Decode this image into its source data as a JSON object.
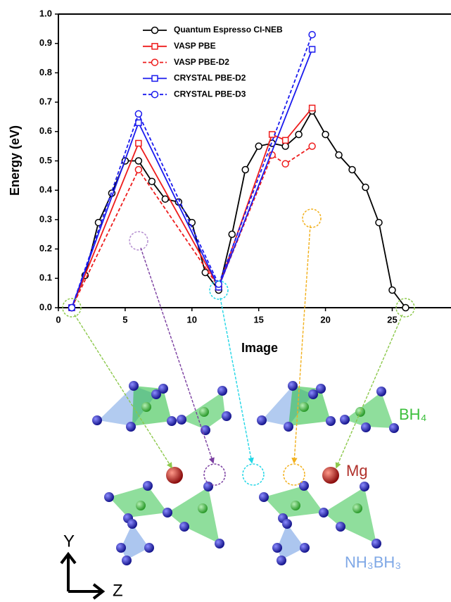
{
  "chart_data": {
    "type": "line",
    "xlabel": "Image",
    "ylabel": "Energy (eV)",
    "xlim": [
      0,
      29.4
    ],
    "ylim": [
      0,
      1.0
    ],
    "xticks": [
      0,
      5,
      10,
      15,
      20,
      25
    ],
    "yticks": [
      {
        "value": 0,
        "label": "0.0"
      },
      {
        "value": 0.1,
        "label": "0.1"
      },
      {
        "value": 0.2,
        "label": "0.2"
      },
      {
        "value": 0.3,
        "label": "0.3"
      },
      {
        "value": 0.4,
        "label": "0.4"
      },
      {
        "value": 0.5,
        "label": "0.5"
      },
      {
        "value": 0.6,
        "label": "0.6"
      },
      {
        "value": 0.7,
        "label": "0.7"
      },
      {
        "value": 0.8,
        "label": "0.8"
      },
      {
        "value": 0.9,
        "label": "0.9"
      },
      {
        "value": 1.0,
        "label": "1.0"
      }
    ],
    "series": [
      {
        "name": "Quantum Espresso CI-NEB",
        "color": "#000000",
        "marker": "circle",
        "dashed": false,
        "x": [
          1,
          2,
          3,
          4,
          5,
          6,
          7,
          8,
          9,
          10,
          11,
          12,
          13,
          14,
          15,
          16,
          17,
          18,
          19,
          20,
          21,
          22,
          23,
          24,
          25,
          26
        ],
        "values": [
          0.0,
          0.11,
          0.29,
          0.39,
          0.5,
          0.5,
          0.43,
          0.37,
          0.36,
          0.29,
          0.12,
          0.06,
          0.25,
          0.47,
          0.55,
          0.56,
          0.55,
          0.59,
          0.67,
          0.59,
          0.52,
          0.47,
          0.41,
          0.29,
          0.06,
          0.0
        ]
      },
      {
        "name": "VASP PBE",
        "color": "#ee1c1c",
        "marker": "square",
        "dashed": false,
        "x": [
          1,
          6,
          12,
          16,
          17,
          19
        ],
        "values": [
          0.0,
          0.56,
          0.07,
          0.59,
          0.57,
          0.68
        ]
      },
      {
        "name": "VASP PBE-D2",
        "color": "#ee1c1c",
        "marker": "circle",
        "dashed": true,
        "x": [
          1,
          6,
          12,
          16,
          17,
          19
        ],
        "values": [
          0.0,
          0.47,
          0.07,
          0.52,
          0.49,
          0.55
        ]
      },
      {
        "name": "CRYSTAL PBE-D2",
        "color": "#1a1aee",
        "marker": "square",
        "dashed": false,
        "x": [
          1,
          6,
          12,
          19
        ],
        "values": [
          0.0,
          0.63,
          0.07,
          0.88
        ]
      },
      {
        "name": "CRYSTAL PBE-D3",
        "color": "#1a1aee",
        "marker": "circle",
        "dashed": true,
        "x": [
          1,
          6,
          12,
          19
        ],
        "values": [
          0.0,
          0.66,
          0.08,
          0.93
        ]
      }
    ]
  },
  "diagram": {
    "bh4_label": "BH₄",
    "mg_label": "Mg",
    "nh3bh3_label": "NH₃BH₃",
    "axis_y": "Y",
    "axis_z": "Z"
  }
}
